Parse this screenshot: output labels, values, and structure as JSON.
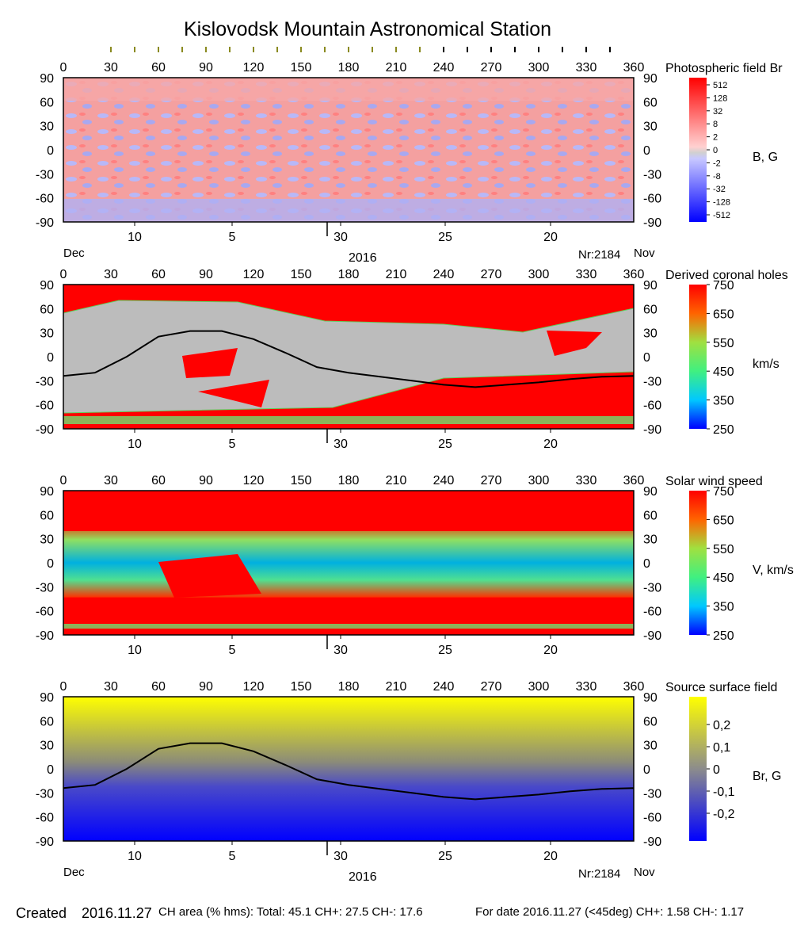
{
  "title": "Kislovodsk Mountain Astronomical Station",
  "lon_ticks": [
    "0",
    "30",
    "60",
    "90",
    "120",
    "150",
    "180",
    "210",
    "240",
    "270",
    "300",
    "330",
    "360"
  ],
  "lat_ticks": [
    "90",
    "60",
    "30",
    "0",
    "-30",
    "-60",
    "-90"
  ],
  "date_ticks": [
    "10",
    "5",
    "30",
    "25",
    "20"
  ],
  "labels": {
    "dec": "Dec",
    "nov": "Nov",
    "year": "2016",
    "rotation": "Nr:2184"
  },
  "colors": {
    "red": "#ff0000",
    "blue": "#0000ff",
    "grey": "#bcbcbc",
    "dark_grey": "#7f7f7f",
    "yellow": "#ffff00",
    "neutral_line": "#000000"
  },
  "chart_data": [
    {
      "type": "heatmap",
      "title": "Photospheric field Br",
      "unit": "B, G",
      "xlim": [
        0,
        360
      ],
      "ylim": [
        -90,
        90
      ],
      "colorbar_ticks": [
        "512",
        "128",
        "32",
        "8",
        "2",
        "0",
        "-2",
        "-8",
        "-32",
        "-128",
        "-512"
      ]
    },
    {
      "type": "heatmap",
      "title": "Derived coronal holes",
      "unit": "km/s",
      "xlim": [
        0,
        360
      ],
      "ylim": [
        -90,
        90
      ],
      "colorbar_ticks": [
        "750",
        "650",
        "550",
        "450",
        "350",
        "250"
      ],
      "neutral_line": {
        "x": [
          0,
          20,
          40,
          60,
          80,
          100,
          120,
          140,
          160,
          180,
          200,
          220,
          240,
          260,
          280,
          300,
          320,
          340,
          360
        ],
        "y": [
          -24,
          -20,
          0,
          25,
          32,
          32,
          22,
          5,
          -13,
          -20,
          -25,
          -30,
          -35,
          -38,
          -35,
          -32,
          -28,
          -25,
          -24
        ]
      }
    },
    {
      "type": "heatmap",
      "title": "Solar wind speed",
      "unit": "V, km/s",
      "xlim": [
        0,
        360
      ],
      "ylim": [
        -90,
        90
      ],
      "colorbar_ticks": [
        "750",
        "650",
        "550",
        "450",
        "350",
        "250"
      ]
    },
    {
      "type": "heatmap",
      "title": "Source surface field",
      "unit": "Br, G",
      "xlim": [
        0,
        360
      ],
      "ylim": [
        -90,
        90
      ],
      "colorbar_ticks": [
        "0,2",
        "0,1",
        "0",
        "-0,1",
        "-0,2"
      ],
      "neutral_line": {
        "x": [
          0,
          20,
          40,
          60,
          80,
          100,
          120,
          140,
          160,
          180,
          200,
          220,
          240,
          260,
          280,
          300,
          320,
          340,
          360
        ],
        "y": [
          -24,
          -20,
          0,
          25,
          32,
          32,
          22,
          5,
          -13,
          -20,
          -25,
          -30,
          -35,
          -38,
          -35,
          -32,
          -28,
          -25,
          -24
        ]
      }
    }
  ],
  "footer": {
    "created_label": "Created",
    "created_date": "2016.11.27",
    "ch_area": "CH area (% hms): Total: 45.1 CH+: 27.5   CH-: 17.6",
    "for_date": "For date 2016.11.27 (<45deg) CH+: 1.58    CH-: 1.17"
  }
}
